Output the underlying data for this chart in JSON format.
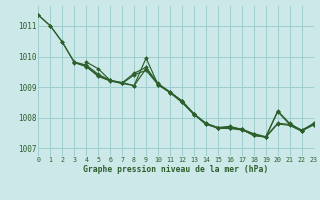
{
  "title": "Graphe pression niveau de la mer (hPa)",
  "bg_color": "#cce8e8",
  "grid_color": "#9ecece",
  "line_color": "#2d5f2d",
  "xlim": [
    0,
    23
  ],
  "ylim": [
    1006.75,
    1011.65
  ],
  "yticks": [
    1007,
    1008,
    1009,
    1010,
    1011
  ],
  "xticks": [
    0,
    1,
    2,
    3,
    4,
    5,
    6,
    7,
    8,
    9,
    10,
    11,
    12,
    13,
    14,
    15,
    16,
    17,
    18,
    19,
    20,
    21,
    22,
    23
  ],
  "series": [
    {
      "start": 0,
      "values": [
        1011.35,
        1011.0,
        1010.47,
        1009.8,
        1009.67,
        1009.35,
        1009.2,
        1009.12,
        1009.4,
        1009.55,
        1009.08,
        1008.82,
        1008.5,
        1008.1,
        1007.8,
        1007.65,
        1007.65,
        1007.6,
        1007.46,
        1007.36,
        1007.8,
        1007.75,
        1007.56,
        1007.77
      ]
    },
    {
      "start": 0,
      "values": [
        1011.35,
        1011.0,
        1010.47,
        1009.82,
        1009.68,
        1009.38,
        1009.22,
        1009.14,
        1009.45,
        1009.65,
        1009.1,
        1008.84,
        1008.55,
        1008.13,
        1007.82,
        1007.67,
        1007.67,
        1007.62,
        1007.42,
        1007.37,
        1008.2,
        1007.78,
        1007.6,
        1007.78
      ]
    },
    {
      "start": 3,
      "values": [
        1009.82,
        1009.72,
        1009.42,
        1009.22,
        1009.12,
        1009.05,
        1009.6,
        1009.12,
        1008.84,
        1008.55,
        1008.12,
        1007.82,
        1007.68,
        1007.68,
        1007.63,
        1007.48,
        1007.38,
        1007.82,
        1007.78,
        1007.58,
        1007.78
      ]
    },
    {
      "start": 4,
      "values": [
        1009.82,
        1009.6,
        1009.22,
        1009.15,
        1009.05,
        1009.95,
        1009.08,
        1008.82,
        1008.52,
        1008.12,
        1007.78,
        1007.68,
        1007.72,
        1007.62,
        1007.42,
        1007.37,
        1008.22,
        1007.82,
        1007.58,
        1007.82
      ]
    }
  ]
}
